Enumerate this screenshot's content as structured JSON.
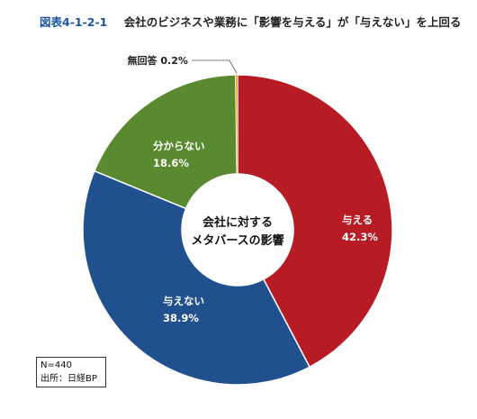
{
  "header": {
    "figure_label": "図表4-1-2-1",
    "title": "会社のビジネスや業務に「影響を与える」が「与えない」を上回る"
  },
  "chart_data": {
    "type": "pie",
    "title": "図表4-1-2-1 会社のビジネスや業務に「影響を与える」が「与えない」を上回る",
    "center_label": [
      "会社に対する",
      "メタバースの影響"
    ],
    "slices": [
      {
        "label": "与える",
        "value": 42.3,
        "display": "42.3%",
        "color": "#b71c24"
      },
      {
        "label": "与えない",
        "value": 38.9,
        "display": "38.9%",
        "color": "#21508f"
      },
      {
        "label": "分からない",
        "value": 18.6,
        "display": "18.6%",
        "color": "#5a8a30"
      },
      {
        "label": "無回答",
        "value": 0.2,
        "display": "0.2%",
        "color": "#e8a21c"
      }
    ]
  },
  "footnote": {
    "sample": "N=440",
    "source": "出所：日経BP"
  }
}
